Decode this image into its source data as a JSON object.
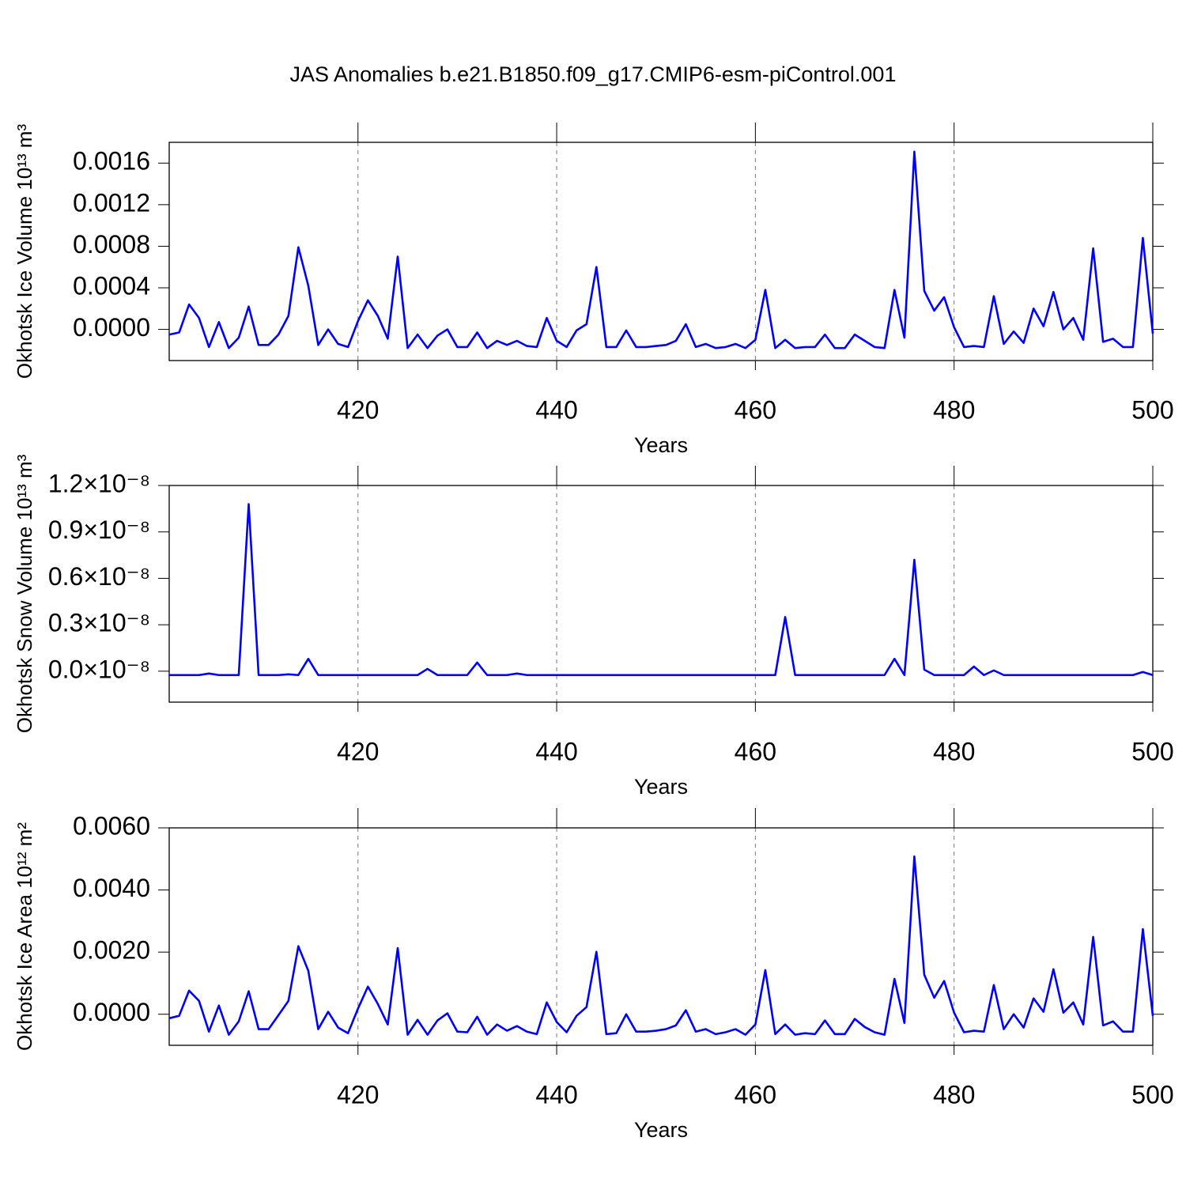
{
  "chart_data": [
    {
      "type": "line",
      "title": "JAS Anomalies b.e21.B1850.f09_g17.CMIP6-esm-piControl.001",
      "xlabel": "Years",
      "ylabel": "Okhotsk Ice Volume 10¹³ m³",
      "color": "#0000ff",
      "grid": true,
      "xlim": [
        401,
        500
      ],
      "xticks": [
        420,
        440,
        460,
        480,
        500
      ],
      "ylim": [
        -0.0003,
        0.0018
      ],
      "yticks": [
        {
          "value": 0,
          "label": "0.0000"
        },
        {
          "value": 0.0004,
          "label": "0.0004"
        },
        {
          "value": 0.0008,
          "label": "0.0008"
        },
        {
          "value": 0.0012,
          "label": "0.0012"
        },
        {
          "value": 0.0016,
          "label": "0.0016"
        }
      ],
      "x": [
        401,
        402,
        403,
        404,
        405,
        406,
        407,
        408,
        409,
        410,
        411,
        412,
        413,
        414,
        415,
        416,
        417,
        418,
        419,
        420,
        421,
        422,
        423,
        424,
        425,
        426,
        427,
        428,
        429,
        430,
        431,
        432,
        433,
        434,
        435,
        436,
        437,
        438,
        439,
        440,
        441,
        442,
        443,
        444,
        445,
        446,
        447,
        448,
        449,
        450,
        451,
        452,
        453,
        454,
        455,
        456,
        457,
        458,
        459,
        460,
        461,
        462,
        463,
        464,
        465,
        466,
        467,
        468,
        469,
        470,
        471,
        472,
        473,
        474,
        475,
        476,
        477,
        478,
        479,
        480,
        481,
        482,
        483,
        484,
        485,
        486,
        487,
        488,
        489,
        490,
        491,
        492,
        493,
        494,
        495,
        496,
        497,
        498,
        499,
        500
      ],
      "values": [
        -5e-05,
        -3e-05,
        0.00024,
        0.00011,
        -0.00017,
        7e-05,
        -0.00018,
        -8e-05,
        0.00022,
        -0.00015,
        -0.00015,
        -5e-05,
        0.00013,
        0.00079,
        0.00042,
        -0.00015,
        0.0,
        -0.00014,
        -0.00017,
        8e-05,
        0.00028,
        0.00013,
        -9e-05,
        0.0007,
        -0.00018,
        -5e-05,
        -0.00018,
        -6e-05,
        0.0,
        -0.00017,
        -0.00017,
        -3e-05,
        -0.00018,
        -0.00011,
        -0.00015,
        -0.00011,
        -0.00016,
        -0.00017,
        0.00011,
        -0.00011,
        -0.00017,
        -1e-05,
        5e-05,
        0.0006,
        -0.00017,
        -0.00017,
        -1e-05,
        -0.00017,
        -0.00017,
        -0.00016,
        -0.00015,
        -0.00011,
        5e-05,
        -0.00017,
        -0.00014,
        -0.00018,
        -0.00017,
        -0.00014,
        -0.00018,
        -0.0001,
        0.00038,
        -0.00018,
        -0.0001,
        -0.00018,
        -0.00017,
        -0.00017,
        -5e-05,
        -0.00018,
        -0.00018,
        -5e-05,
        -0.00011,
        -0.00017,
        -0.00018,
        0.00038,
        -8e-05,
        0.00171,
        0.00037,
        0.00018,
        0.00031,
        2e-05,
        -0.00017,
        -0.00016,
        -0.00017,
        0.00032,
        -0.00014,
        -2e-05,
        -0.00013,
        0.0002,
        3e-05,
        0.00036,
        0.0,
        0.00011,
        -0.0001,
        0.00078,
        -0.00012,
        -9e-05,
        -0.00017,
        -0.00017,
        0.00088,
        -4e-05
      ]
    },
    {
      "type": "line",
      "xlabel": "Years",
      "ylabel": "Okhotsk Snow Volume 10¹³ m³",
      "color": "#0000ff",
      "grid": true,
      "xlim": [
        401,
        500
      ],
      "xticks": [
        420,
        440,
        460,
        480,
        500
      ],
      "ylim": [
        -2e-09,
        1.2e-08
      ],
      "yticks": [
        {
          "value": 0,
          "label": "0.0×10⁻⁸"
        },
        {
          "value": 3e-09,
          "label": "0.3×10⁻⁸"
        },
        {
          "value": 6e-09,
          "label": "0.6×10⁻⁸"
        },
        {
          "value": 9e-09,
          "label": "0.9×10⁻⁸"
        },
        {
          "value": 1.2e-08,
          "label": "1.2×10⁻⁸"
        }
      ],
      "x": [
        401,
        402,
        403,
        404,
        405,
        406,
        407,
        408,
        409,
        410,
        411,
        412,
        413,
        414,
        415,
        416,
        417,
        418,
        419,
        420,
        421,
        422,
        423,
        424,
        425,
        426,
        427,
        428,
        429,
        430,
        431,
        432,
        433,
        434,
        435,
        436,
        437,
        438,
        439,
        440,
        441,
        442,
        443,
        444,
        445,
        446,
        447,
        448,
        449,
        450,
        451,
        452,
        453,
        454,
        455,
        456,
        457,
        458,
        459,
        460,
        461,
        462,
        463,
        464,
        465,
        466,
        467,
        468,
        469,
        470,
        471,
        472,
        473,
        474,
        475,
        476,
        477,
        478,
        479,
        480,
        481,
        482,
        483,
        484,
        485,
        486,
        487,
        488,
        489,
        490,
        491,
        492,
        493,
        494,
        495,
        496,
        497,
        498,
        499,
        500
      ],
      "values": [
        -2.5e-10,
        -2.5e-10,
        -2.5e-10,
        -2.5e-10,
        -1.5e-10,
        -2.5e-10,
        -2.5e-10,
        -2.5e-10,
        1.08e-08,
        -2.5e-10,
        -2.5e-10,
        -2.5e-10,
        -2e-10,
        -2.5e-10,
        8e-10,
        -2.5e-10,
        -2.5e-10,
        -2.5e-10,
        -2.5e-10,
        -2.5e-10,
        -2.5e-10,
        -2.5e-10,
        -2.5e-10,
        -2.5e-10,
        -2.5e-10,
        -2.5e-10,
        1.5e-10,
        -2.5e-10,
        -2.5e-10,
        -2.5e-10,
        -2.5e-10,
        5.6e-10,
        -2.5e-10,
        -2.5e-10,
        -2.5e-10,
        -1.5e-10,
        -2.5e-10,
        -2.5e-10,
        -2.5e-10,
        -2.5e-10,
        -2.5e-10,
        -2.5e-10,
        -2.5e-10,
        -2.5e-10,
        -2.5e-10,
        -2.5e-10,
        -2.5e-10,
        -2.5e-10,
        -2.5e-10,
        -2.5e-10,
        -2.5e-10,
        -2.5e-10,
        -2.5e-10,
        -2.5e-10,
        -2.5e-10,
        -2.5e-10,
        -2.5e-10,
        -2.5e-10,
        -2.5e-10,
        -2.5e-10,
        -2.5e-10,
        -2.5e-10,
        3.5e-09,
        -2.5e-10,
        -2.5e-10,
        -2.5e-10,
        -2.5e-10,
        -2.5e-10,
        -2.5e-10,
        -2.5e-10,
        -2.5e-10,
        -2.5e-10,
        -2.5e-10,
        8e-10,
        -2.5e-10,
        7.2e-09,
        1e-10,
        -2.5e-10,
        -2.5e-10,
        -2.5e-10,
        -2.5e-10,
        3e-10,
        -2.5e-10,
        5e-11,
        -2.5e-10,
        -2.5e-10,
        -2.5e-10,
        -2.5e-10,
        -2.5e-10,
        -2.5e-10,
        -2.5e-10,
        -2.5e-10,
        -2.5e-10,
        -2.5e-10,
        -2.5e-10,
        -2.5e-10,
        -2.5e-10,
        -2.5e-10,
        -5e-11,
        -2.5e-10
      ]
    },
    {
      "type": "line",
      "xlabel": "Years",
      "ylabel": "Okhotsk Ice Area 10¹² m²",
      "color": "#0000ff",
      "grid": true,
      "xlim": [
        401,
        500
      ],
      "xticks": [
        420,
        440,
        460,
        480,
        500
      ],
      "ylim": [
        -0.001,
        0.006
      ],
      "yticks": [
        {
          "value": 0,
          "label": "0.0000"
        },
        {
          "value": 0.002,
          "label": "0.0020"
        },
        {
          "value": 0.004,
          "label": "0.0040"
        },
        {
          "value": 0.006,
          "label": "0.0060"
        }
      ],
      "x": [
        401,
        402,
        403,
        404,
        405,
        406,
        407,
        408,
        409,
        410,
        411,
        412,
        413,
        414,
        415,
        416,
        417,
        418,
        419,
        420,
        421,
        422,
        423,
        424,
        425,
        426,
        427,
        428,
        429,
        430,
        431,
        432,
        433,
        434,
        435,
        436,
        437,
        438,
        439,
        440,
        441,
        442,
        443,
        444,
        445,
        446,
        447,
        448,
        449,
        450,
        451,
        452,
        453,
        454,
        455,
        456,
        457,
        458,
        459,
        460,
        461,
        462,
        463,
        464,
        465,
        466,
        467,
        468,
        469,
        470,
        471,
        472,
        473,
        474,
        475,
        476,
        477,
        478,
        479,
        480,
        481,
        482,
        483,
        484,
        485,
        486,
        487,
        488,
        489,
        490,
        491,
        492,
        493,
        494,
        495,
        496,
        497,
        498,
        499,
        500
      ],
      "values": [
        -0.00013,
        -5e-05,
        0.00076,
        0.00043,
        -0.00056,
        0.00028,
        -0.00066,
        -0.00023,
        0.00074,
        -0.00048,
        -0.00048,
        -3e-05,
        0.00043,
        0.00219,
        0.0014,
        -0.00048,
        8e-05,
        -0.00043,
        -0.00061,
        0.00018,
        0.00089,
        0.00033,
        -0.00033,
        0.00213,
        -0.00066,
        -0.00018,
        -0.00066,
        -0.0002,
        3e-05,
        -0.00056,
        -0.00058,
        -8e-05,
        -0.00066,
        -0.00033,
        -0.00053,
        -0.00038,
        -0.00056,
        -0.00064,
        0.00038,
        -0.00025,
        -0.00058,
        -5e-05,
        0.00023,
        0.00201,
        -0.00064,
        -0.00061,
        0.0,
        -0.00056,
        -0.00056,
        -0.00053,
        -0.00048,
        -0.00036,
        0.00013,
        -0.00056,
        -0.00048,
        -0.00064,
        -0.00058,
        -0.00048,
        -0.00066,
        -0.00033,
        0.00142,
        -0.00064,
        -0.00033,
        -0.00066,
        -0.00061,
        -0.00064,
        -0.0002,
        -0.00064,
        -0.00064,
        -0.00015,
        -0.00041,
        -0.00058,
        -0.00066,
        0.00114,
        -0.00028,
        0.00508,
        0.00127,
        0.00053,
        0.00107,
        5e-05,
        -0.00058,
        -0.00053,
        -0.00056,
        0.00094,
        -0.00048,
        0.0,
        -0.00043,
        0.00051,
        8e-05,
        0.00145,
        5e-05,
        0.00038,
        -0.00033,
        0.00249,
        -0.00036,
        -0.00023,
        -0.00056,
        -0.00056,
        0.00274,
        -5e-05
      ]
    }
  ]
}
